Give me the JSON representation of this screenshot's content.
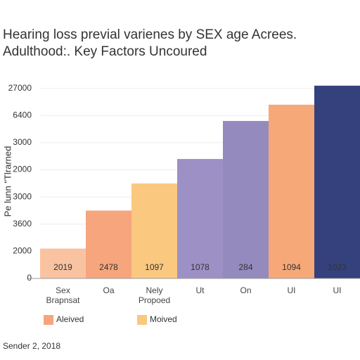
{
  "chart_data": {
    "type": "bar",
    "title": "Hearing loss previal varienes by SEX age Acrees.",
    "subtitle": "Adulthood:. Key Factors Uncoured",
    "y_label": "Pe lunn \"Tlrarned",
    "categories": [
      "Sex\nBrapnsat",
      "Oa",
      "Nely\nPropoed",
      "Ut",
      "On",
      "UI",
      "UI"
    ],
    "values": [
      1.1,
      2.5,
      3.5,
      4.4,
      5.8,
      6.4,
      7.1
    ],
    "bar_texts": [
      "2019",
      "2478",
      "1097",
      "1078",
      "284",
      "1094",
      "1023"
    ],
    "colors": [
      "#f9c3a1",
      "#f6a57d",
      "#fbc880",
      "#9d90c5",
      "#958abe",
      "#f7a878",
      "#34417c"
    ],
    "ylim": [
      0,
      7.2
    ],
    "yticks": [
      {
        "value": 0,
        "label": "0"
      },
      {
        "value": 1,
        "label": "2000"
      },
      {
        "value": 2,
        "label": "3600"
      },
      {
        "value": 3,
        "label": "3000"
      },
      {
        "value": 4,
        "label": "2000"
      },
      {
        "value": 5,
        "label": "3000"
      },
      {
        "value": 6,
        "label": "6400"
      },
      {
        "value": 7,
        "label": "27000"
      }
    ],
    "grid": true,
    "legend": [
      {
        "name": "Aleived",
        "color": "#f6a57d"
      },
      {
        "name": "Moived",
        "color": "#fbc880"
      }
    ],
    "footer": "Sender 2, 2018"
  }
}
